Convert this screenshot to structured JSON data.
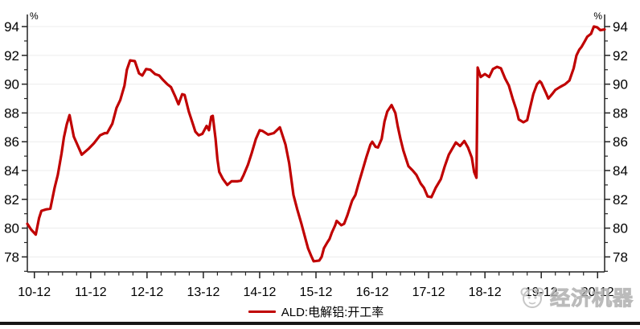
{
  "colors": {
    "line": "#C00000",
    "axis": "#222222",
    "grid": "#ECECEC",
    "tick_label": "#000000",
    "watermark": "#BDBDBD",
    "bottom_bar": "#161616"
  },
  "legend": {
    "label": "ALD:电解铝:开工率"
  },
  "watermark": {
    "text": "经济机器",
    "logo": "panda-face-logo"
  },
  "chart_data": {
    "type": "line",
    "title": "",
    "x_unit": "year-month (months since 2010-12)",
    "left_axis_unit": "%",
    "right_axis_unit": "%",
    "xlim_months": [
      -1.5,
      121.5
    ],
    "ylim": [
      76.96,
      94.84
    ],
    "grid": "horizontal gridlines every 2 units",
    "legend_position": "bottom-center",
    "y_ticks_major": [
      78,
      80,
      82,
      84,
      86,
      88,
      90,
      92,
      94
    ],
    "y_tick_minor_step": 1,
    "x_ticks_major": [
      {
        "label": "10-12",
        "m": 0
      },
      {
        "label": "11-12",
        "m": 12
      },
      {
        "label": "12-12",
        "m": 24
      },
      {
        "label": "13-12",
        "m": 36
      },
      {
        "label": "14-12",
        "m": 48
      },
      {
        "label": "15-12",
        "m": 60
      },
      {
        "label": "16-12",
        "m": 72
      },
      {
        "label": "17-12",
        "m": 84
      },
      {
        "label": "18-12",
        "m": 96
      },
      {
        "label": "19-12",
        "m": 108
      },
      {
        "label": "20-12",
        "m": 120
      }
    ],
    "x_tick_minor_step_months": 3,
    "series": [
      {
        "name": "ALD:电解铝:开工率",
        "color": "#C00000",
        "points": [
          [
            -1.5,
            80.3
          ],
          [
            -0.7,
            79.9
          ],
          [
            0.3,
            79.55
          ],
          [
            1,
            80.7
          ],
          [
            1.5,
            81.2
          ],
          [
            2.5,
            81.3
          ],
          [
            3.4,
            81.35
          ],
          [
            4.3,
            82.8
          ],
          [
            5,
            83.7
          ],
          [
            5.8,
            85.2
          ],
          [
            6.3,
            86.3
          ],
          [
            6.9,
            87.2
          ],
          [
            7.5,
            87.85
          ],
          [
            8.4,
            86.35
          ],
          [
            9.3,
            85.7
          ],
          [
            10.1,
            85.1
          ],
          [
            11.5,
            85.5
          ],
          [
            12.7,
            85.9
          ],
          [
            14,
            86.45
          ],
          [
            15,
            86.6
          ],
          [
            15.5,
            86.6
          ],
          [
            16.6,
            87.25
          ],
          [
            17.5,
            88.35
          ],
          [
            18.3,
            88.9
          ],
          [
            19.2,
            89.9
          ],
          [
            19.7,
            91
          ],
          [
            20.4,
            91.65
          ],
          [
            21.4,
            91.6
          ],
          [
            22.3,
            90.75
          ],
          [
            23,
            90.6
          ],
          [
            23.8,
            91.05
          ],
          [
            24.7,
            91
          ],
          [
            25.7,
            90.7
          ],
          [
            26.6,
            90.6
          ],
          [
            27.4,
            90.3
          ],
          [
            28.3,
            90
          ],
          [
            29.1,
            89.8
          ],
          [
            30,
            89.15
          ],
          [
            30.7,
            88.6
          ],
          [
            31.5,
            89.3
          ],
          [
            32,
            89.25
          ],
          [
            32.9,
            88.1
          ],
          [
            33.8,
            87.2
          ],
          [
            34.3,
            86.7
          ],
          [
            35,
            86.45
          ],
          [
            35.8,
            86.55
          ],
          [
            36.7,
            87.1
          ],
          [
            37.2,
            86.8
          ],
          [
            37.7,
            87.75
          ],
          [
            38,
            87.8
          ],
          [
            38.6,
            86.2
          ],
          [
            39,
            84.8
          ],
          [
            39.4,
            83.9
          ],
          [
            40.2,
            83.4
          ],
          [
            41.1,
            83
          ],
          [
            42,
            83.25
          ],
          [
            43.2,
            83.25
          ],
          [
            44,
            83.3
          ],
          [
            44.6,
            83.7
          ],
          [
            45.5,
            84.4
          ],
          [
            46.3,
            85.2
          ],
          [
            47.2,
            86.2
          ],
          [
            48,
            86.8
          ],
          [
            48.6,
            86.75
          ],
          [
            49.8,
            86.5
          ],
          [
            51,
            86.6
          ],
          [
            52.3,
            87
          ],
          [
            53.5,
            85.8
          ],
          [
            54.3,
            84.5
          ],
          [
            55.2,
            82.3
          ],
          [
            56,
            81.3
          ],
          [
            56.9,
            80.3
          ],
          [
            57.8,
            79.2
          ],
          [
            58.3,
            78.6
          ],
          [
            59,
            78.05
          ],
          [
            59.5,
            77.7
          ],
          [
            60.7,
            77.75
          ],
          [
            61.2,
            78
          ],
          [
            61.7,
            78.6
          ],
          [
            62.4,
            79
          ],
          [
            62.9,
            79.25
          ],
          [
            63.4,
            79.7
          ],
          [
            64.1,
            80.2
          ],
          [
            64.4,
            80.5
          ],
          [
            65.4,
            80.2
          ],
          [
            66,
            80.3
          ],
          [
            66.7,
            80.9
          ],
          [
            67.2,
            81.4
          ],
          [
            67.7,
            81.9
          ],
          [
            68.4,
            82.3
          ],
          [
            69,
            83
          ],
          [
            69.9,
            84
          ],
          [
            70.7,
            84.9
          ],
          [
            71.6,
            85.8
          ],
          [
            72,
            86
          ],
          [
            72.7,
            85.65
          ],
          [
            73.2,
            85.6
          ],
          [
            74,
            86.2
          ],
          [
            74.6,
            87.4
          ],
          [
            75.2,
            88.1
          ],
          [
            76.1,
            88.55
          ],
          [
            76.9,
            88
          ],
          [
            77.4,
            87.1
          ],
          [
            78,
            86.2
          ],
          [
            78.6,
            85.4
          ],
          [
            79.2,
            84.8
          ],
          [
            79.7,
            84.3
          ],
          [
            80.6,
            84
          ],
          [
            81.4,
            83.7
          ],
          [
            82.3,
            83.1
          ],
          [
            83,
            82.8
          ],
          [
            83.8,
            82.2
          ],
          [
            84.6,
            82.15
          ],
          [
            85.5,
            82.8
          ],
          [
            86.6,
            83.4
          ],
          [
            87.4,
            84.25
          ],
          [
            88.3,
            85.1
          ],
          [
            89.8,
            85.95
          ],
          [
            90.7,
            85.7
          ],
          [
            91.6,
            86.05
          ],
          [
            92.4,
            85.6
          ],
          [
            93.2,
            84.9
          ],
          [
            93.7,
            83.9
          ],
          [
            94.2,
            83.5
          ],
          [
            94.45,
            91.15
          ],
          [
            95.1,
            90.5
          ],
          [
            96,
            90.7
          ],
          [
            96.9,
            90.5
          ],
          [
            97.7,
            91.05
          ],
          [
            98.6,
            91.2
          ],
          [
            99.4,
            91.1
          ],
          [
            100.3,
            90.4
          ],
          [
            101.1,
            89.9
          ],
          [
            101.9,
            89
          ],
          [
            102.7,
            88.2
          ],
          [
            103.2,
            87.55
          ],
          [
            104.2,
            87.35
          ],
          [
            105,
            87.5
          ],
          [
            105.5,
            88.2
          ],
          [
            106.3,
            89.3
          ],
          [
            107.1,
            90
          ],
          [
            107.7,
            90.2
          ],
          [
            108,
            90.1
          ],
          [
            109,
            89.4
          ],
          [
            109.5,
            89
          ],
          [
            110.3,
            89.3
          ],
          [
            111,
            89.6
          ],
          [
            112,
            89.8
          ],
          [
            113.1,
            90
          ],
          [
            114,
            90.25
          ],
          [
            114.9,
            91.1
          ],
          [
            115.5,
            92
          ],
          [
            116.1,
            92.4
          ],
          [
            116.6,
            92.6
          ],
          [
            117.3,
            93
          ],
          [
            117.8,
            93.3
          ],
          [
            118.6,
            93.5
          ],
          [
            119.2,
            94
          ],
          [
            119.9,
            93.95
          ],
          [
            120.6,
            93.75
          ],
          [
            121.5,
            93.8
          ]
        ]
      }
    ]
  }
}
